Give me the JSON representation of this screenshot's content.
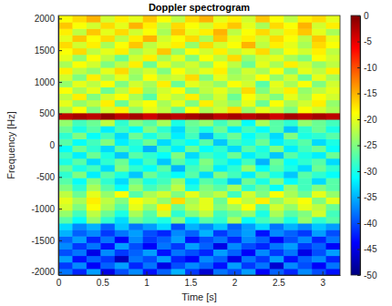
{
  "chart_data": {
    "type": "heatmap",
    "title": "Doppler spectrogram",
    "x_label": "Time [s]",
    "y_label": "Frequency [Hz]",
    "xlim": [
      0,
      3.2
    ],
    "ylim": [
      -2048,
      2048
    ],
    "xticks": [
      0,
      0.5,
      1,
      1.5,
      2,
      2.5,
      3
    ],
    "yticks": [
      -2000,
      -1500,
      -1000,
      -500,
      0,
      500,
      1000,
      1500,
      2000
    ],
    "x_edges": [
      0,
      0.16,
      0.32,
      0.48,
      0.64,
      0.8,
      0.96,
      1.12,
      1.28,
      1.44,
      1.6,
      1.76,
      1.92,
      2.08,
      2.24,
      2.4,
      2.56,
      2.72,
      2.88,
      3.04,
      3.2
    ],
    "y_edges": [
      -2048,
      -1945.6,
      -1843.2,
      -1740.8,
      -1638.4,
      -1536,
      -1433.6,
      -1331.2,
      -1228.8,
      -1126.4,
      -1024,
      -921.6,
      -819.2,
      -716.8,
      -614.4,
      -512,
      -409.6,
      -307.2,
      -204.8,
      -102.4,
      0,
      102.4,
      204.8,
      307.2,
      409.6,
      512,
      614.4,
      716.8,
      819.2,
      921.6,
      1024,
      1126.4,
      1228.8,
      1331.2,
      1433.6,
      1536,
      1638.4,
      1740.8,
      1843.2,
      1945.6,
      2048
    ],
    "cells": [
      [
        -38,
        -42,
        -36,
        -45,
        -40,
        -37,
        -43,
        -39,
        -35,
        -41,
        -46,
        -38,
        -40,
        -36,
        -44,
        -39,
        -42,
        -37,
        -40,
        -43
      ],
      [
        -41,
        -37,
        -44,
        -39,
        -36,
        -42,
        -38,
        -45,
        -40,
        -37,
        -39,
        -43,
        -36,
        -41,
        -38,
        -46,
        -37,
        -40,
        -44,
        -38
      ],
      [
        -36,
        -43,
        -39,
        -41,
        -47,
        -38,
        -40,
        -36,
        -42,
        -44,
        -37,
        -39,
        -45,
        -38,
        -41,
        -36,
        -43,
        -39,
        -37,
        -42
      ],
      [
        -40,
        -38,
        -45,
        -37,
        -41,
        -39,
        -36,
        -43,
        -38,
        -40,
        -42,
        -36,
        -39,
        -44,
        -37,
        -41,
        -38,
        -45,
        -40,
        -36
      ],
      [
        -37,
        -41,
        -38,
        -43,
        -36,
        -40,
        -44,
        -38,
        -41,
        -36,
        -39,
        -45,
        -37,
        -40,
        -42,
        -38,
        -36,
        -41,
        -39,
        -44
      ],
      [
        -39,
        -36,
        -42,
        -38,
        -44,
        -37,
        -41,
        -39,
        -36,
        -43,
        -40,
        -38,
        -42,
        -37,
        -39,
        -44,
        -40,
        -37,
        -42,
        -38
      ],
      [
        -35,
        -39,
        -37,
        -41,
        -38,
        -36,
        -40,
        -42,
        -37,
        -39,
        -35,
        -41,
        -38,
        -36,
        -43,
        -37,
        -39,
        -41,
        -36,
        -40
      ],
      [
        -33,
        -37,
        -35,
        -39,
        -34,
        -38,
        -36,
        -33,
        -40,
        -35,
        -37,
        -34,
        -39,
        -36,
        -33,
        -38,
        -35,
        -37,
        -34,
        -36
      ],
      [
        -27,
        -31,
        -24,
        -29,
        -33,
        -26,
        -28,
        -30,
        -25,
        -32,
        -27,
        -29,
        -23,
        -31,
        -28,
        -26,
        -30,
        -24,
        -29,
        -27
      ],
      [
        -24,
        -28,
        -22,
        -26,
        -30,
        -23,
        -27,
        -21,
        -29,
        -25,
        -22,
        -28,
        -26,
        -24,
        -30,
        -23,
        -27,
        -25,
        -21,
        -28
      ],
      [
        -21,
        -25,
        -19,
        -23,
        -27,
        -20,
        -24,
        -18,
        -26,
        -22,
        -20,
        -25,
        -23,
        -19,
        -27,
        -21,
        -24,
        -20,
        -22,
        -26
      ],
      [
        -20,
        -23,
        -18,
        -22,
        -25,
        -19,
        -21,
        -24,
        -17,
        -23,
        -20,
        -26,
        -19,
        -22,
        -18,
        -24,
        -21,
        -19,
        -25,
        -20
      ],
      [
        -22,
        -26,
        -20,
        -24,
        -19,
        -27,
        -23,
        -21,
        -25,
        -20,
        -24,
        -22,
        -28,
        -21,
        -25,
        -19,
        -23,
        -26,
        -20,
        -24
      ],
      [
        -25,
        -29,
        -23,
        -27,
        -31,
        -24,
        -28,
        -26,
        -22,
        -30,
        -25,
        -27,
        -23,
        -29,
        -26,
        -31,
        -24,
        -28,
        -25,
        -27
      ],
      [
        -27,
        -31,
        -25,
        -29,
        -33,
        -26,
        -30,
        -28,
        -24,
        -32,
        -27,
        -29,
        -34,
        -26,
        -30,
        -25,
        -31,
        -28,
        -33,
        -27
      ],
      [
        -29,
        -25,
        -32,
        -27,
        -30,
        -34,
        -26,
        -29,
        -31,
        -27,
        -33,
        -25,
        -28,
        -32,
        -26,
        -30,
        -34,
        -27,
        -29,
        -31
      ],
      [
        -26,
        -30,
        -28,
        -33,
        -25,
        -29,
        -31,
        -27,
        -35,
        -28,
        -26,
        -32,
        -29,
        -24,
        -31,
        -27,
        -30,
        -33,
        -26,
        -29
      ],
      [
        -30,
        -27,
        -33,
        -29,
        -26,
        -32,
        -28,
        -34,
        -27,
        -30,
        -25,
        -29,
        -32,
        -28,
        -35,
        -26,
        -31,
        -29,
        -27,
        -33
      ],
      [
        -28,
        -32,
        -26,
        -30,
        -34,
        -27,
        -29,
        -31,
        -25,
        -33,
        -28,
        -30,
        -26,
        -32,
        -29,
        -34,
        -27,
        -30,
        -32,
        -26
      ],
      [
        -31,
        -26,
        -29,
        -33,
        -27,
        -30,
        -35,
        -28,
        -32,
        -26,
        -31,
        -29,
        -33,
        -27,
        -30,
        -25,
        -32,
        -28,
        -26,
        -31
      ],
      [
        -27,
        -31,
        -28,
        -25,
        -32,
        -29,
        -26,
        -33,
        -29,
        -31,
        -27,
        -34,
        -28,
        -30,
        -26,
        -32,
        -29,
        -27,
        -33,
        -30
      ],
      [
        -29,
        -25,
        -31,
        -28,
        -33,
        -26,
        -30,
        -27,
        -32,
        -28,
        -35,
        -29,
        -26,
        -31,
        -28,
        -33,
        -25,
        -30,
        -29,
        -27
      ],
      [
        -26,
        -30,
        -27,
        -32,
        -28,
        -31,
        -25,
        -29,
        -33,
        -27,
        -30,
        -26,
        -32,
        -28,
        -31,
        -27,
        -34,
        -29,
        -26,
        -30
      ],
      [
        -24,
        -28,
        -26,
        -22,
        -29,
        -25,
        -27,
        -23,
        -30,
        -26,
        -24,
        -28,
        -25,
        -31,
        -23,
        -27,
        -29,
        -24,
        -26,
        -28
      ],
      [
        -3,
        -2,
        -3,
        -1,
        -3,
        -2,
        -4,
        -2,
        -3,
        -2,
        -1,
        -3,
        -2,
        -3,
        -2,
        -4,
        -2,
        -3,
        -2,
        -3
      ],
      [
        -23,
        -19,
        -25,
        -21,
        -18,
        -24,
        -20,
        -22,
        -26,
        -19,
        -23,
        -21,
        -17,
        -24,
        -20,
        -22,
        -25,
        -19,
        -21,
        -23
      ],
      [
        -20,
        -24,
        -22,
        -18,
        -26,
        -21,
        -19,
        -23,
        -20,
        -25,
        -18,
        -22,
        -24,
        -20,
        -26,
        -19,
        -23,
        -21,
        -18,
        -24
      ],
      [
        -22,
        -18,
        -25,
        -21,
        -19,
        -23,
        -27,
        -20,
        -22,
        -18,
        -24,
        -21,
        -26,
        -19,
        -22,
        -25,
        -20,
        -23,
        -19,
        -21
      ],
      [
        -19,
        -23,
        -20,
        -26,
        -22,
        -18,
        -24,
        -21,
        -19,
        -25,
        -22,
        -20,
        -23,
        -17,
        -25,
        -21,
        -18,
        -24,
        -22,
        -20
      ],
      [
        -24,
        -20,
        -22,
        -19,
        -25,
        -21,
        -23,
        -18,
        -26,
        -20,
        -22,
        -24,
        -19,
        -21,
        -27,
        -20,
        -23,
        -19,
        -25,
        -21
      ],
      [
        -21,
        -25,
        -18,
        -23,
        -20,
        -24,
        -19,
        -22,
        -21,
        -17,
        -25,
        -20,
        -23,
        -22,
        -19,
        -24,
        -21,
        -26,
        -20,
        -23
      ],
      [
        -18,
        -22,
        -24,
        -20,
        -17,
        -23,
        -21,
        -25,
        -19,
        -22,
        -20,
        -18,
        -24,
        -21,
        -23,
        -19,
        -25,
        -20,
        -22,
        -18
      ],
      [
        -23,
        -19,
        -21,
        -25,
        -22,
        -18,
        -26,
        -20,
        -23,
        -21,
        -24,
        -19,
        -22,
        -26,
        -20,
        -23,
        -18,
        -21,
        -24,
        -22
      ],
      [
        -20,
        -24,
        -19,
        -22,
        -26,
        -21,
        -18,
        -23,
        -20,
        -25,
        -19,
        -22,
        -17,
        -24,
        -21,
        -20,
        -23,
        -25,
        -19,
        -21
      ],
      [
        -19,
        -17,
        -22,
        -20,
        -18,
        -23,
        -21,
        -16,
        -24,
        -19,
        -21,
        -18,
        -22,
        -20,
        -17,
        -23,
        -19,
        -21,
        -18,
        -22
      ],
      [
        -17,
        -21,
        -18,
        -23,
        -19,
        -16,
        -22,
        -20,
        -18,
        -24,
        -17,
        -21,
        -19,
        -15,
        -22,
        -18,
        -20,
        -23,
        -17,
        -19
      ],
      [
        -20,
        -16,
        -19,
        -17,
        -22,
        -18,
        -15,
        -21,
        -19,
        -17,
        -23,
        -16,
        -20,
        -18,
        -21,
        -17,
        -19,
        -22,
        -16,
        -20
      ],
      [
        -18,
        -22,
        -16,
        -20,
        -17,
        -21,
        -19,
        -23,
        -16,
        -20,
        -18,
        -15,
        -22,
        -19,
        -17,
        -21,
        -18,
        -16,
        -20,
        -23
      ],
      [
        -16,
        -19,
        -21,
        -17,
        -20,
        -15,
        -18,
        -22,
        -17,
        -19,
        -21,
        -18,
        -16,
        -20,
        -23,
        -17,
        -19,
        -15,
        -21,
        -18
      ],
      [
        -19,
        -17,
        -15,
        -21,
        -18,
        -20,
        -16,
        -19,
        -22,
        -17,
        -15,
        -20,
        -18,
        -21,
        -16,
        -19,
        -22,
        -18,
        -17,
        -20
      ]
    ],
    "colorbar": {
      "range": [
        -50,
        0
      ],
      "ticks": [
        -50,
        -45,
        -40,
        -35,
        -30,
        -25,
        -20,
        -15,
        -10,
        -5,
        0
      ]
    }
  }
}
